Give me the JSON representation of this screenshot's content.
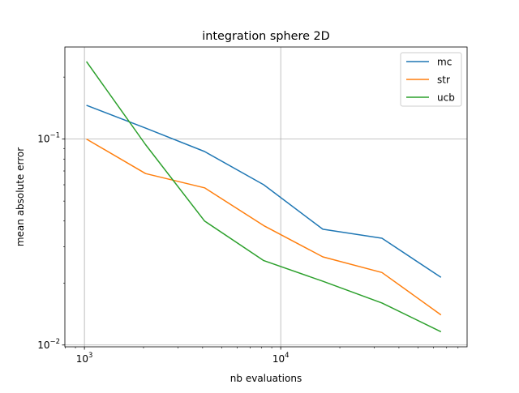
{
  "chart_data": {
    "type": "line",
    "title": "integration sphere 2D",
    "xlabel": "nb evaluations",
    "ylabel": "mean absolute error",
    "xscale": "log",
    "yscale": "log",
    "xlim": [
      795,
      89000
    ],
    "ylim": [
      0.0098,
      0.28
    ],
    "grid": "major",
    "legend_position": "top-right",
    "x_ticks": [
      {
        "value": 1000,
        "base": "10",
        "exp": "3"
      },
      {
        "value": 10000,
        "base": "10",
        "exp": "4"
      }
    ],
    "y_ticks": [
      {
        "value": 0.01,
        "base": "10",
        "exp": "−2"
      },
      {
        "value": 0.1,
        "base": "10",
        "exp": "−1"
      }
    ],
    "x": [
      1024,
      2048,
      4096,
      8192,
      16384,
      32768,
      65536
    ],
    "series": [
      {
        "name": "mc",
        "color": "#1f77b4",
        "values": [
          0.146,
          0.113,
          0.087,
          0.06,
          0.0365,
          0.033,
          0.0213
        ]
      },
      {
        "name": "str",
        "color": "#ff7f0e",
        "values": [
          0.1,
          0.068,
          0.058,
          0.038,
          0.0268,
          0.0225,
          0.014
        ]
      },
      {
        "name": "ucb",
        "color": "#2ca02c",
        "values": [
          0.238,
          0.094,
          0.04,
          0.0257,
          0.0204,
          0.016,
          0.0116
        ]
      }
    ]
  }
}
